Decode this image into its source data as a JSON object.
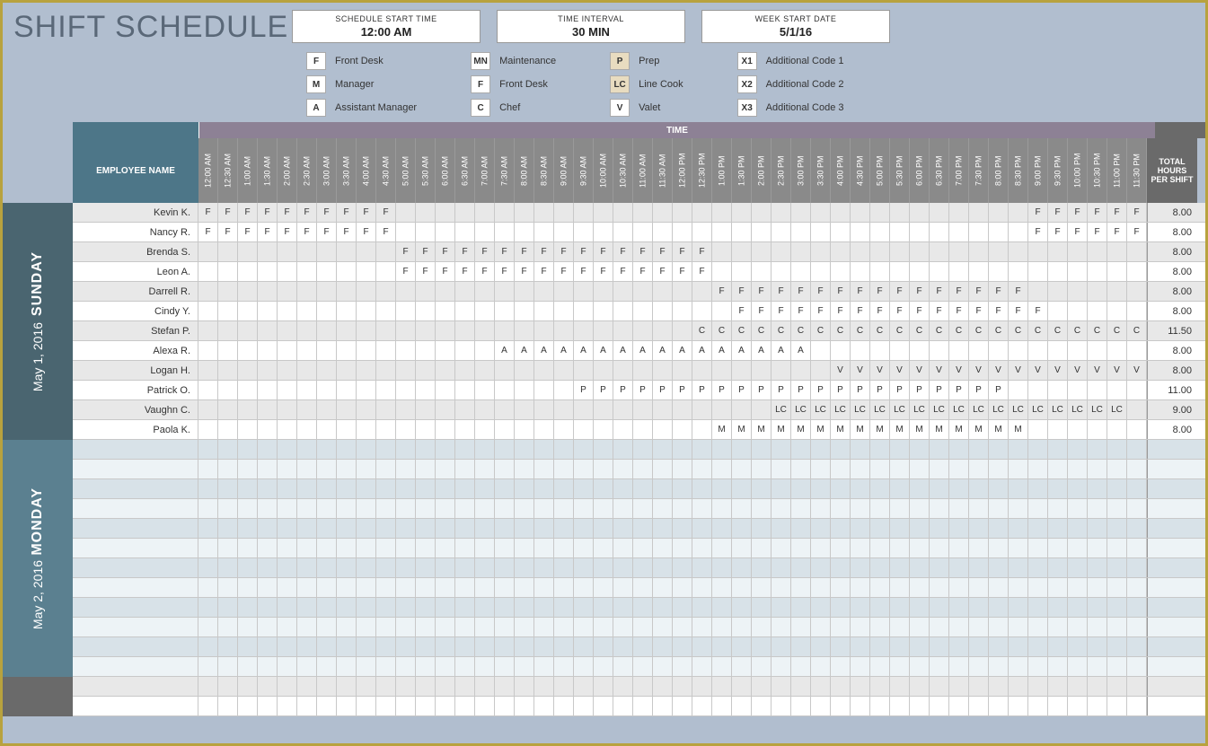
{
  "title": "SHIFT SCHEDULE",
  "info": {
    "start_time": {
      "label": "SCHEDULE START TIME",
      "value": "12:00 AM"
    },
    "interval": {
      "label": "TIME INTERVAL",
      "value": "30 MIN"
    },
    "week_start": {
      "label": "WEEK START DATE",
      "value": "5/1/16"
    }
  },
  "legend": [
    [
      {
        "code": "F",
        "label": "Front Desk"
      },
      {
        "code": "M",
        "label": "Manager"
      },
      {
        "code": "A",
        "label": "Assistant Manager"
      }
    ],
    [
      {
        "code": "MN",
        "label": "Maintenance"
      },
      {
        "code": "F",
        "label": "Front Desk"
      },
      {
        "code": "C",
        "label": "Chef"
      }
    ],
    [
      {
        "code": "P",
        "label": "Prep",
        "tan": true
      },
      {
        "code": "LC",
        "label": "Line Cook",
        "tan": true
      },
      {
        "code": "V",
        "label": "Valet"
      }
    ],
    [
      {
        "code": "X1",
        "label": "Additional Code 1"
      },
      {
        "code": "X2",
        "label": "Additional Code 2"
      },
      {
        "code": "X3",
        "label": "Additional Code 3"
      }
    ]
  ],
  "headers": {
    "employee": "EMPLOYEE NAME",
    "time": "TIME",
    "total": "TOTAL HOURS PER SHIFT"
  },
  "time_slots": [
    "12:00 AM",
    "12:30 AM",
    "1:00 AM",
    "1:30 AM",
    "2:00 AM",
    "2:30 AM",
    "3:00 AM",
    "3:30 AM",
    "4:00 AM",
    "4:30 AM",
    "5:00 AM",
    "5:30 AM",
    "6:00 AM",
    "6:30 AM",
    "7:00 AM",
    "7:30 AM",
    "8:00 AM",
    "8:30 AM",
    "9:00 AM",
    "9:30 AM",
    "10:00 AM",
    "10:30 AM",
    "11:00 AM",
    "11:30 AM",
    "12:00 PM",
    "12:30 PM",
    "1:00 PM",
    "1:30 PM",
    "2:00 PM",
    "2:30 PM",
    "3:00 PM",
    "3:30 PM",
    "4:00 PM",
    "4:30 PM",
    "5:00 PM",
    "5:30 PM",
    "6:00 PM",
    "6:30 PM",
    "7:00 PM",
    "7:30 PM",
    "8:00 PM",
    "8:30 PM",
    "9:00 PM",
    "9:30 PM",
    "10:00 PM",
    "10:30 PM",
    "11:00 PM",
    "11:30 PM"
  ],
  "days": [
    {
      "id": "sunday",
      "dow": "SUNDAY",
      "date": "May 1, 2016",
      "class": "day-sun",
      "rows": [
        {
          "name": "Kevin K.",
          "total": "8.00",
          "cells": {
            "0": "F",
            "1": "F",
            "2": "F",
            "3": "F",
            "4": "F",
            "5": "F",
            "6": "F",
            "7": "F",
            "8": "F",
            "9": "F",
            "42": "F",
            "43": "F",
            "44": "F",
            "45": "F",
            "46": "F",
            "47": "F"
          }
        },
        {
          "name": "Nancy R.",
          "total": "8.00",
          "cells": {
            "0": "F",
            "1": "F",
            "2": "F",
            "3": "F",
            "4": "F",
            "5": "F",
            "6": "F",
            "7": "F",
            "8": "F",
            "9": "F",
            "42": "F",
            "43": "F",
            "44": "F",
            "45": "F",
            "46": "F",
            "47": "F"
          }
        },
        {
          "name": "Brenda S.",
          "total": "8.00",
          "cells": {
            "10": "F",
            "11": "F",
            "12": "F",
            "13": "F",
            "14": "F",
            "15": "F",
            "16": "F",
            "17": "F",
            "18": "F",
            "19": "F",
            "20": "F",
            "21": "F",
            "22": "F",
            "23": "F",
            "24": "F",
            "25": "F"
          }
        },
        {
          "name": "Leon A.",
          "total": "8.00",
          "cells": {
            "10": "F",
            "11": "F",
            "12": "F",
            "13": "F",
            "14": "F",
            "15": "F",
            "16": "F",
            "17": "F",
            "18": "F",
            "19": "F",
            "20": "F",
            "21": "F",
            "22": "F",
            "23": "F",
            "24": "F",
            "25": "F"
          }
        },
        {
          "name": "Darrell R.",
          "total": "8.00",
          "cells": {
            "26": "F",
            "27": "F",
            "28": "F",
            "29": "F",
            "30": "F",
            "31": "F",
            "32": "F",
            "33": "F",
            "34": "F",
            "35": "F",
            "36": "F",
            "37": "F",
            "38": "F",
            "39": "F",
            "40": "F",
            "41": "F"
          }
        },
        {
          "name": "Cindy Y.",
          "total": "8.00",
          "cells": {
            "27": "F",
            "28": "F",
            "29": "F",
            "30": "F",
            "31": "F",
            "32": "F",
            "33": "F",
            "34": "F",
            "35": "F",
            "36": "F",
            "37": "F",
            "38": "F",
            "39": "F",
            "40": "F",
            "41": "F",
            "42": "F"
          }
        },
        {
          "name": "Stefan P.",
          "total": "11.50",
          "cells": {
            "25": "C",
            "26": "C",
            "27": "C",
            "28": "C",
            "29": "C",
            "30": "C",
            "31": "C",
            "32": "C",
            "33": "C",
            "34": "C",
            "35": "C",
            "36": "C",
            "37": "C",
            "38": "C",
            "39": "C",
            "40": "C",
            "41": "C",
            "42": "C",
            "43": "C",
            "44": "C",
            "45": "C",
            "46": "C",
            "47": "C"
          }
        },
        {
          "name": "Alexa R.",
          "total": "8.00",
          "cells": {
            "15": "A",
            "16": "A",
            "17": "A",
            "18": "A",
            "19": "A",
            "20": "A",
            "21": "A",
            "22": "A",
            "23": "A",
            "24": "A",
            "25": "A",
            "26": "A",
            "27": "A",
            "28": "A",
            "29": "A",
            "30": "A"
          }
        },
        {
          "name": "Logan H.",
          "total": "8.00",
          "cells": {
            "32": "V",
            "33": "V",
            "34": "V",
            "35": "V",
            "36": "V",
            "37": "V",
            "38": "V",
            "39": "V",
            "40": "V",
            "41": "V",
            "42": "V",
            "43": "V",
            "44": "V",
            "45": "V",
            "46": "V",
            "47": "V"
          }
        },
        {
          "name": "Patrick O.",
          "total": "11.00",
          "cells": {
            "19": "P",
            "20": "P",
            "21": "P",
            "22": "P",
            "23": "P",
            "24": "P",
            "25": "P",
            "26": "P",
            "27": "P",
            "28": "P",
            "29": "P",
            "30": "P",
            "31": "P",
            "32": "P",
            "33": "P",
            "34": "P",
            "35": "P",
            "36": "P",
            "37": "P",
            "38": "P",
            "39": "P",
            "40": "P"
          }
        },
        {
          "name": "Vaughn C.",
          "total": "9.00",
          "cells": {
            "29": "LC",
            "30": "LC",
            "31": "LC",
            "32": "LC",
            "33": "LC",
            "34": "LC",
            "35": "LC",
            "36": "LC",
            "37": "LC",
            "38": "LC",
            "39": "LC",
            "40": "LC",
            "41": "LC",
            "42": "LC",
            "43": "LC",
            "44": "LC",
            "45": "LC",
            "46": "LC"
          }
        },
        {
          "name": "Paola K.",
          "total": "8.00",
          "cells": {
            "26": "M",
            "27": "M",
            "28": "M",
            "29": "M",
            "30": "M",
            "31": "M",
            "32": "M",
            "33": "M",
            "34": "M",
            "35": "M",
            "36": "M",
            "37": "M",
            "38": "M",
            "39": "M",
            "40": "M",
            "41": "M"
          }
        }
      ]
    },
    {
      "id": "monday",
      "dow": "MONDAY",
      "date": "May 2, 2016",
      "class": "day-mon",
      "rows": [
        {
          "name": "",
          "total": "",
          "cells": {}
        },
        {
          "name": "",
          "total": "",
          "cells": {}
        },
        {
          "name": "",
          "total": "",
          "cells": {}
        },
        {
          "name": "",
          "total": "",
          "cells": {}
        },
        {
          "name": "",
          "total": "",
          "cells": {}
        },
        {
          "name": "",
          "total": "",
          "cells": {}
        },
        {
          "name": "",
          "total": "",
          "cells": {}
        },
        {
          "name": "",
          "total": "",
          "cells": {}
        },
        {
          "name": "",
          "total": "",
          "cells": {}
        },
        {
          "name": "",
          "total": "",
          "cells": {}
        },
        {
          "name": "",
          "total": "",
          "cells": {}
        },
        {
          "name": "",
          "total": "",
          "cells": {}
        }
      ]
    },
    {
      "id": "tuesday",
      "dow": "",
      "date": "",
      "class": "day-tue",
      "rows": [
        {
          "name": "",
          "total": "",
          "cells": {}
        },
        {
          "name": "",
          "total": "",
          "cells": {}
        }
      ]
    }
  ],
  "colors": {
    "page_bg": "#b1becf",
    "border": "#b8a23e",
    "title": "#5a6878",
    "emp_hdr": "#4d7688",
    "time_hdr": "#8d8195",
    "slot_bg": "#8a8a8a",
    "total_hdr": "#6a6a6a",
    "sun": "#4a6570",
    "mon": "#5b8090",
    "tue": "#6a6a6a",
    "row_even": "#e8e8e8",
    "row_odd": "#ffffff",
    "mon_even": "#d8e2e8",
    "mon_odd": "#edf3f6"
  }
}
